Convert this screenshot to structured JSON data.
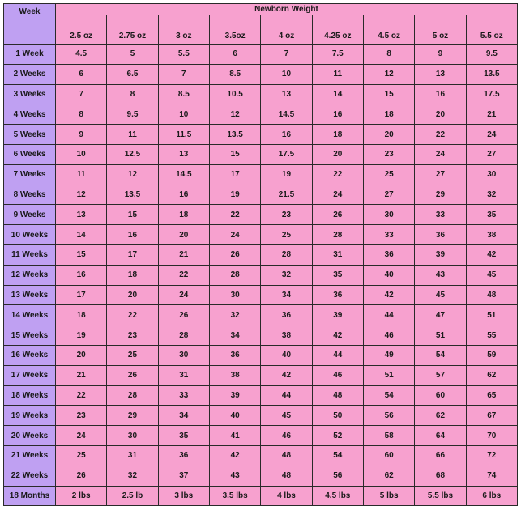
{
  "table": {
    "title": "Newborn Weight",
    "week_header": "Week",
    "weights": [
      "2.5 oz",
      "2.75 oz",
      "3 oz",
      "3.5oz",
      "4 oz",
      "4.25 oz",
      "4.5 oz",
      "5 oz",
      "5.5 oz"
    ],
    "rows": [
      {
        "week": "1 Week",
        "values": [
          "4.5",
          "5",
          "5.5",
          "6",
          "7",
          "7.5",
          "8",
          "9",
          "9.5"
        ]
      },
      {
        "week": "2 Weeks",
        "values": [
          "6",
          "6.5",
          "7",
          "8.5",
          "10",
          "11",
          "12",
          "13",
          "13.5"
        ]
      },
      {
        "week": "3 Weeks",
        "values": [
          "7",
          "8",
          "8.5",
          "10.5",
          "13",
          "14",
          "15",
          "16",
          "17.5"
        ]
      },
      {
        "week": "4 Weeks",
        "values": [
          "8",
          "9.5",
          "10",
          "12",
          "14.5",
          "16",
          "18",
          "20",
          "21"
        ]
      },
      {
        "week": "5 Weeks",
        "values": [
          "9",
          "11",
          "11.5",
          "13.5",
          "16",
          "18",
          "20",
          "22",
          "24"
        ]
      },
      {
        "week": "6 Weeks",
        "values": [
          "10",
          "12.5",
          "13",
          "15",
          "17.5",
          "20",
          "23",
          "24",
          "27"
        ]
      },
      {
        "week": "7 Weeks",
        "values": [
          "11",
          "12",
          "14.5",
          "17",
          "19",
          "22",
          "25",
          "27",
          "30"
        ]
      },
      {
        "week": "8 Weeks",
        "values": [
          "12",
          "13.5",
          "16",
          "19",
          "21.5",
          "24",
          "27",
          "29",
          "32"
        ]
      },
      {
        "week": "9 Weeks",
        "values": [
          "13",
          "15",
          "18",
          "22",
          "23",
          "26",
          "30",
          "33",
          "35"
        ]
      },
      {
        "week": "10 Weeks",
        "values": [
          "14",
          "16",
          "20",
          "24",
          "25",
          "28",
          "33",
          "36",
          "38"
        ]
      },
      {
        "week": "11 Weeks",
        "values": [
          "15",
          "17",
          "21",
          "26",
          "28",
          "31",
          "36",
          "39",
          "42"
        ]
      },
      {
        "week": "12 Weeks",
        "values": [
          "16",
          "18",
          "22",
          "28",
          "32",
          "35",
          "40",
          "43",
          "45"
        ]
      },
      {
        "week": "13 Weeks",
        "values": [
          "17",
          "20",
          "24",
          "30",
          "34",
          "36",
          "42",
          "45",
          "48"
        ]
      },
      {
        "week": "14 Weeks",
        "values": [
          "18",
          "22",
          "26",
          "32",
          "36",
          "39",
          "44",
          "47",
          "51"
        ]
      },
      {
        "week": "15 Weeks",
        "values": [
          "19",
          "23",
          "28",
          "34",
          "38",
          "42",
          "46",
          "51",
          "55"
        ]
      },
      {
        "week": "16 Weeks",
        "values": [
          "20",
          "25",
          "30",
          "36",
          "40",
          "44",
          "49",
          "54",
          "59"
        ]
      },
      {
        "week": "17 Weeks",
        "values": [
          "21",
          "26",
          "31",
          "38",
          "42",
          "46",
          "51",
          "57",
          "62"
        ]
      },
      {
        "week": "18 Weeks",
        "values": [
          "22",
          "28",
          "33",
          "39",
          "44",
          "48",
          "54",
          "60",
          "65"
        ]
      },
      {
        "week": "19 Weeks",
        "values": [
          "23",
          "29",
          "34",
          "40",
          "45",
          "50",
          "56",
          "62",
          "67"
        ]
      },
      {
        "week": "20 Weeks",
        "values": [
          "24",
          "30",
          "35",
          "41",
          "46",
          "52",
          "58",
          "64",
          "70"
        ]
      },
      {
        "week": "21 Weeks",
        "values": [
          "25",
          "31",
          "36",
          "42",
          "48",
          "54",
          "60",
          "66",
          "72"
        ]
      },
      {
        "week": "22 Weeks",
        "values": [
          "26",
          "32",
          "37",
          "43",
          "48",
          "56",
          "62",
          "68",
          "74"
        ]
      },
      {
        "week": "18 Months",
        "values": [
          "2 lbs",
          "2.5 lb",
          "3 lbs",
          "3.5 lbs",
          "4 lbs",
          "4.5 lbs",
          "5 lbs",
          "5.5 lbs",
          "6 lbs"
        ]
      }
    ]
  },
  "colors": {
    "week_column": "#bfa0f2",
    "cells": "#f7a1cf",
    "grid": "#2a2a2a"
  }
}
